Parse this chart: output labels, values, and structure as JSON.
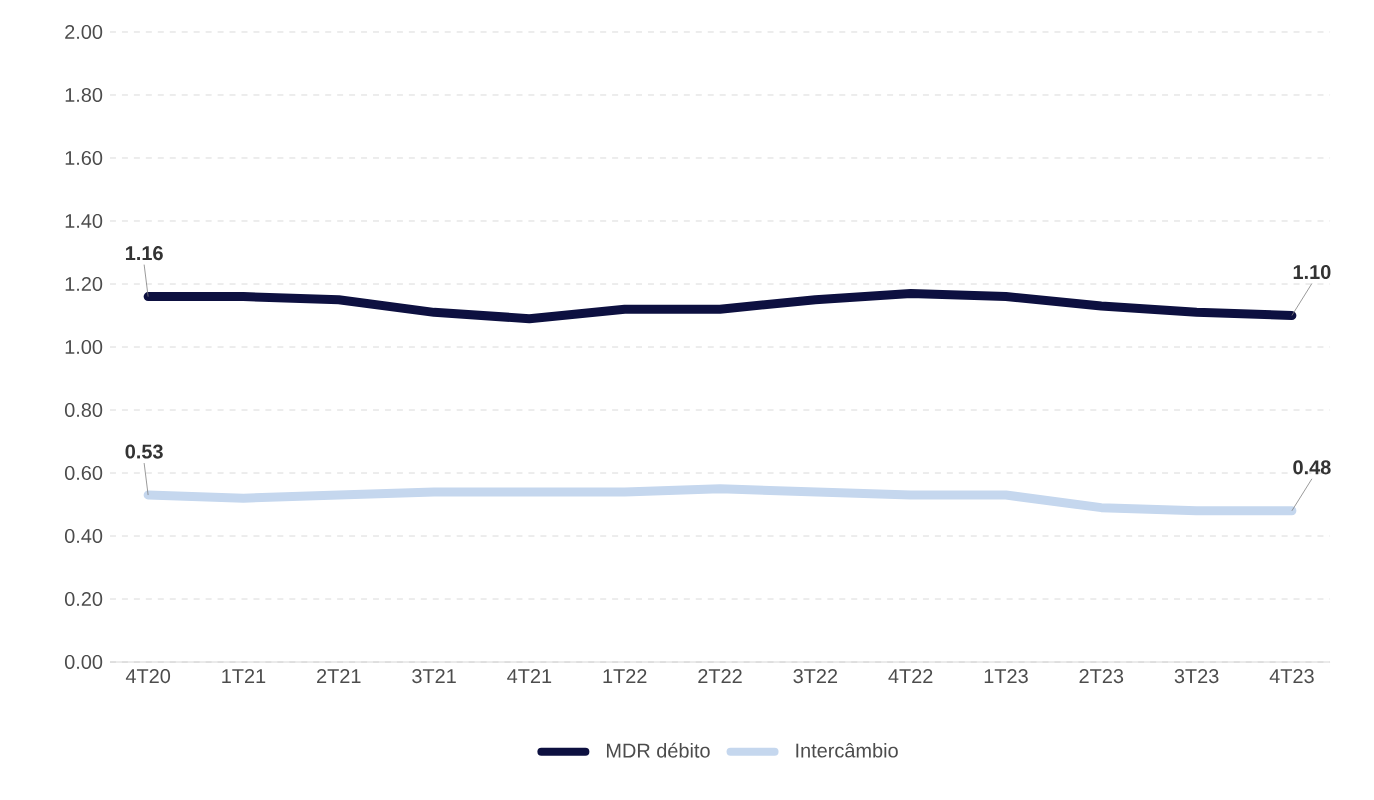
{
  "chart_data": {
    "type": "line",
    "categories": [
      "4T20",
      "1T21",
      "2T21",
      "3T21",
      "4T21",
      "1T22",
      "2T22",
      "3T22",
      "4T22",
      "1T23",
      "2T23",
      "3T23",
      "4T23"
    ],
    "series": [
      {
        "name": "MDR débito",
        "color": "#0d1040",
        "values": [
          1.16,
          1.16,
          1.15,
          1.11,
          1.09,
          1.12,
          1.12,
          1.15,
          1.17,
          1.16,
          1.13,
          1.11,
          1.1
        ],
        "value_labels": [
          "1.16",
          null,
          null,
          null,
          null,
          null,
          null,
          null,
          null,
          null,
          null,
          null,
          "1.10"
        ]
      },
      {
        "name": "Intercâmbio",
        "color": "#c5d7ee",
        "values": [
          0.53,
          0.52,
          0.53,
          0.54,
          0.54,
          0.54,
          0.55,
          0.54,
          0.53,
          0.53,
          0.49,
          0.48,
          0.48
        ],
        "value_labels": [
          "0.53",
          null,
          null,
          null,
          null,
          null,
          null,
          null,
          null,
          null,
          null,
          null,
          "0.48"
        ]
      }
    ],
    "ylim": [
      0,
      2
    ],
    "yticks": [
      {
        "value": 0,
        "label": "0.00"
      },
      {
        "value": 0.2,
        "label": "0.20"
      },
      {
        "value": 0.4,
        "label": "0.40"
      },
      {
        "value": 0.6,
        "label": "0.60"
      },
      {
        "value": 0.8,
        "label": "0.80"
      },
      {
        "value": 1,
        "label": "1.00"
      },
      {
        "value": 1.2,
        "label": "1.20"
      },
      {
        "value": 1.4,
        "label": "1.40"
      },
      {
        "value": 1.6,
        "label": "1.60"
      },
      {
        "value": 1.8,
        "label": "1.80"
      },
      {
        "value": 2,
        "label": "2.00"
      }
    ],
    "grid": "y",
    "legend": "bottom",
    "marker": "none",
    "line_style": "solid"
  }
}
